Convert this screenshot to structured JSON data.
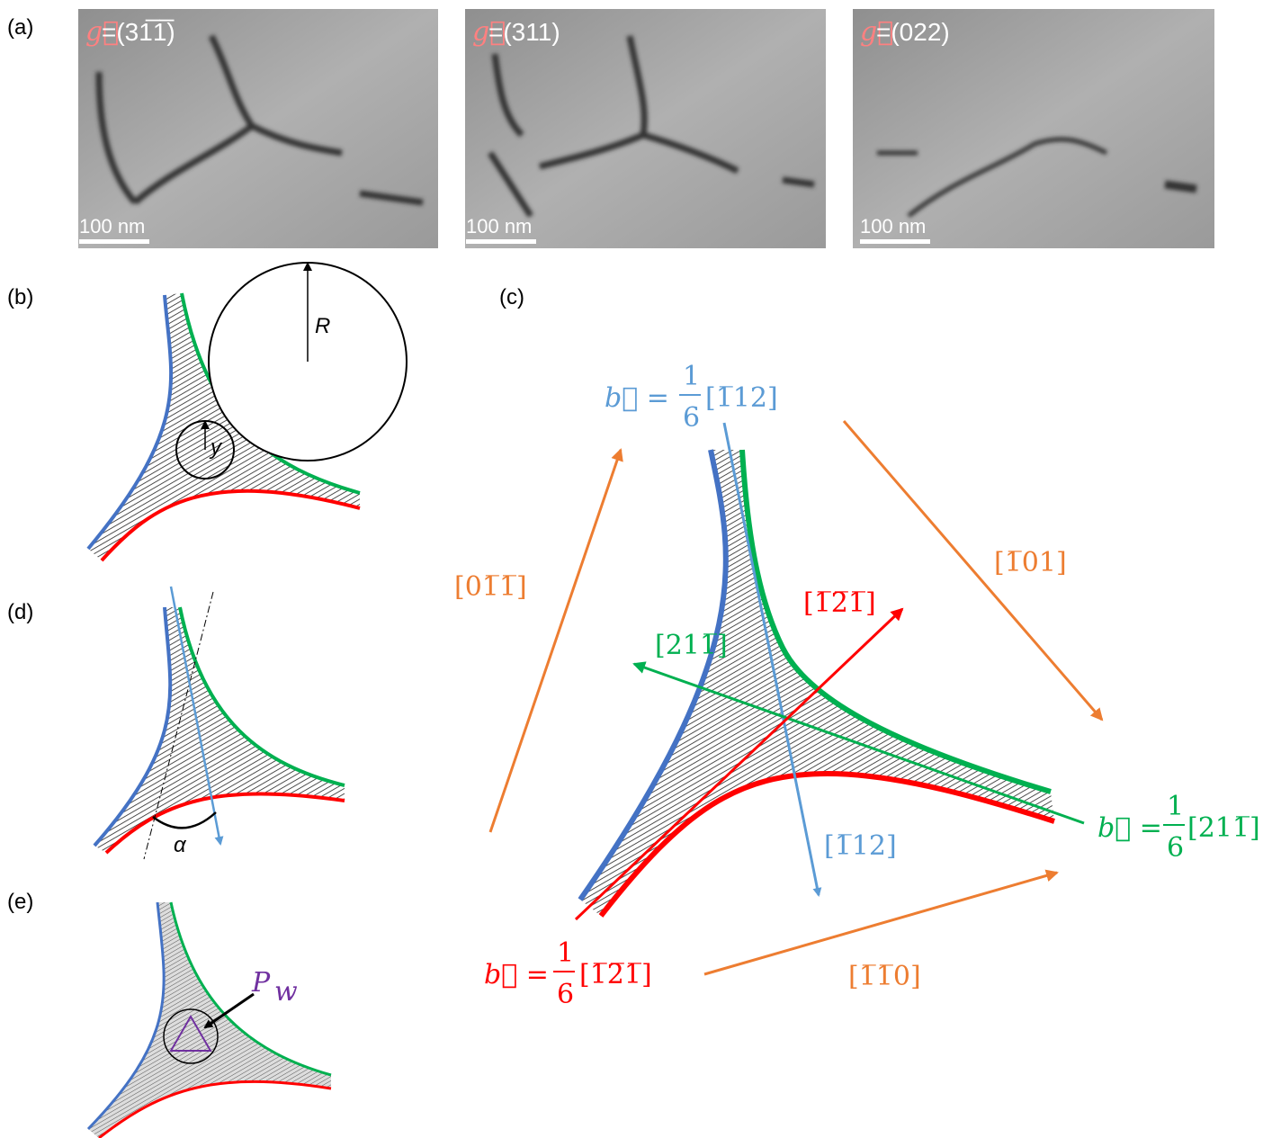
{
  "panel_labels": [
    "(a)",
    "(b)",
    "(c)",
    "(d)",
    "(e)"
  ],
  "micrographs": [
    {
      "g": "g⃗",
      "reflection": "=(31̅1̅)",
      "scale_bar": "100 nm"
    },
    {
      "g": "g⃗",
      "reflection": "=(311)",
      "scale_bar": "100 nm"
    },
    {
      "g": "g⃗",
      "reflection": "=(022)",
      "scale_bar": "100 nm"
    }
  ],
  "panel_b": {
    "radius_label": "R",
    "width_label": "y"
  },
  "panel_c": {
    "burgers_vectors": [
      {
        "prefix": "b⃗ =",
        "numerator": "1",
        "denominator": "6",
        "direction": "[1̅12]"
      },
      {
        "prefix": "b⃗ =",
        "numerator": "1",
        "denominator": "6",
        "direction": "[211̅]"
      },
      {
        "prefix": "b⃗ =",
        "numerator": "1",
        "denominator": "6",
        "direction": "[1̅2̅1̅]"
      }
    ],
    "line_directions": [
      "[01̅1̅]",
      "[1̅01]",
      "[1̅1̅0]"
    ],
    "normal_labels": [
      "[211̅]",
      "[1̅2̅1̅]",
      "[1̅12]"
    ]
  },
  "panel_d": {
    "angle_label": "α"
  },
  "panel_e": {
    "force_label": "P",
    "force_subscript": "w"
  }
}
